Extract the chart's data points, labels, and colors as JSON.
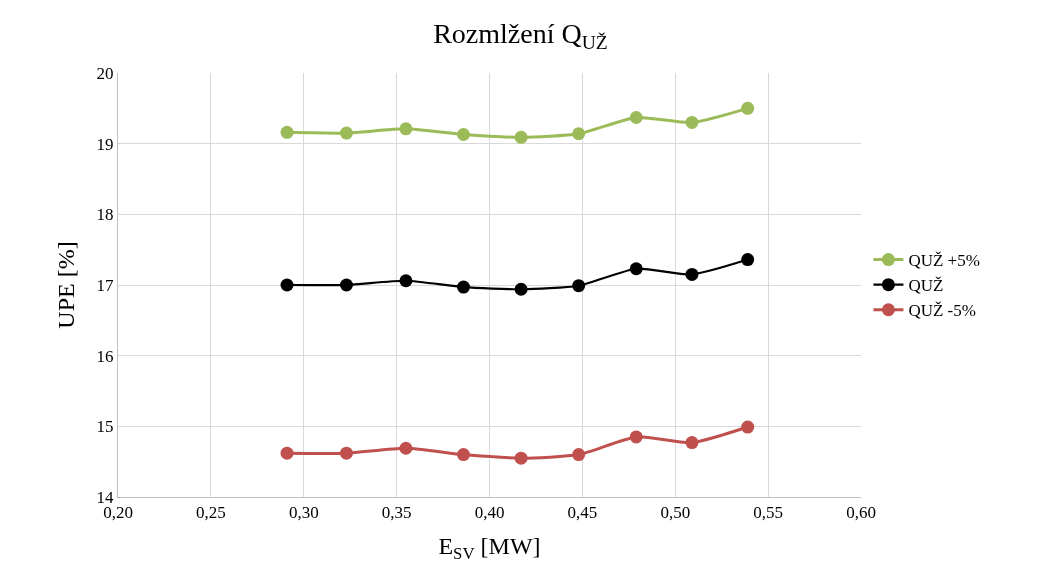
{
  "chart_data": {
    "type": "line",
    "title": "Rozmlžení Q$_{UŽ}$",
    "xlabel": "E$_{SV}$ [MW]",
    "ylabel": "UPE [%]",
    "x": [
      0.291,
      0.323,
      0.355,
      0.386,
      0.417,
      0.448,
      0.479,
      0.509,
      0.539
    ],
    "series": [
      {
        "name": "QUŽ +5%",
        "color": "#9bbb59",
        "values": [
          19.16,
          19.15,
          19.21,
          19.13,
          19.09,
          19.14,
          19.37,
          19.3,
          19.5
        ]
      },
      {
        "name": "QUŽ",
        "color": "#000000",
        "values": [
          17.0,
          17.0,
          17.06,
          16.97,
          16.94,
          16.99,
          17.23,
          17.15,
          17.36
        ]
      },
      {
        "name": "QUŽ -5%",
        "color": "#c0504d",
        "values": [
          14.62,
          14.62,
          14.69,
          14.6,
          14.55,
          14.6,
          14.85,
          14.77,
          14.99
        ]
      }
    ],
    "xlim": [
      0.2,
      0.6
    ],
    "xticks": [
      {
        "value": 0.2,
        "label": "0,20"
      },
      {
        "value": 0.25,
        "label": "0,25"
      },
      {
        "value": 0.3,
        "label": "0,30"
      },
      {
        "value": 0.35,
        "label": "0,35"
      },
      {
        "value": 0.4,
        "label": "0,40"
      },
      {
        "value": 0.45,
        "label": "0,45"
      },
      {
        "value": 0.5,
        "label": "0,50"
      },
      {
        "value": 0.55,
        "label": "0,55"
      },
      {
        "value": 0.6,
        "label": "0,60"
      }
    ],
    "ylim": [
      14,
      20
    ],
    "yticks": [
      14,
      15,
      16,
      17,
      18,
      19,
      20
    ],
    "grid": true,
    "legend": "right",
    "marker": "circle",
    "line_style": "solid"
  }
}
